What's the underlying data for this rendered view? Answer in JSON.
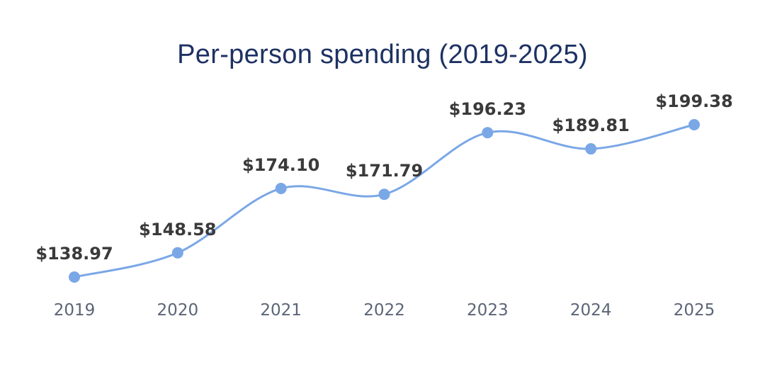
{
  "chart_data": {
    "type": "line",
    "title": "Per-person spending (2019-2025)",
    "xlabel": "",
    "ylabel": "",
    "categories": [
      "2019",
      "2020",
      "2021",
      "2022",
      "2023",
      "2024",
      "2025"
    ],
    "values": [
      138.97,
      148.58,
      174.1,
      171.79,
      196.23,
      189.81,
      199.38
    ],
    "data_labels": [
      "$138.97",
      "$148.58",
      "$174.10",
      "$171.79",
      "$196.23",
      "$189.81",
      "$199.38"
    ],
    "ylim": [
      130,
      205
    ],
    "grid": false,
    "legend": "none",
    "line_style": "smooth"
  },
  "colors": {
    "title": "#1d3163",
    "line": "#7aa7e6",
    "marker": "#7aa7e6",
    "data_label": "#3a3a3a",
    "tick_label": "#5b6577",
    "background": "#ffffff"
  }
}
